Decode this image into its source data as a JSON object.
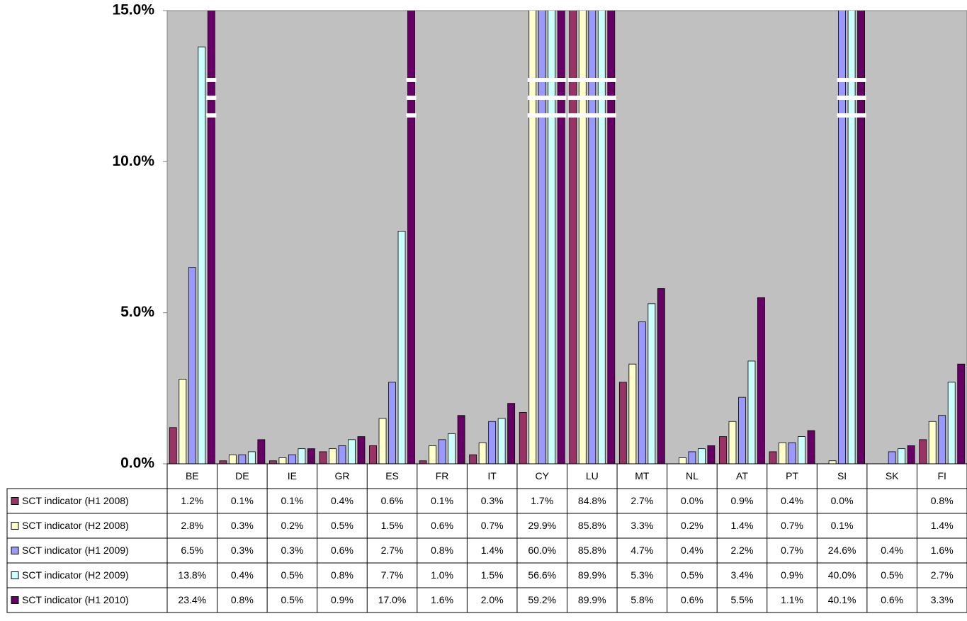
{
  "chart_data": {
    "type": "bar",
    "categories": [
      "BE",
      "DE",
      "IE",
      "GR",
      "ES",
      "FR",
      "IT",
      "CY",
      "LU",
      "MT",
      "NL",
      "AT",
      "PT",
      "SI",
      "SK",
      "FI"
    ],
    "ylim": [
      0,
      15
    ],
    "yticks": [
      {
        "value": 0,
        "label": "0.0%"
      },
      {
        "value": 5,
        "label": "5.0%"
      },
      {
        "value": 10,
        "label": "10.0%"
      },
      {
        "value": 15,
        "label": "15.0%"
      }
    ],
    "grid": false,
    "series": [
      {
        "name": "SCT indicator (H1 2008)",
        "color": "#993366",
        "values": [
          1.2,
          0.1,
          0.1,
          0.4,
          0.6,
          0.1,
          0.3,
          1.7,
          84.8,
          2.7,
          0.0,
          0.9,
          0.4,
          0.0,
          null,
          0.8
        ],
        "value_labels": [
          "1.2%",
          "0.1%",
          "0.1%",
          "0.4%",
          "0.6%",
          "0.1%",
          "0.3%",
          "1.7%",
          "84.8%",
          "2.7%",
          "0.0%",
          "0.9%",
          "0.4%",
          "0.0%",
          null,
          "0.8%"
        ]
      },
      {
        "name": "SCT indicator (H2 2008)",
        "color": "#ffffcc",
        "values": [
          2.8,
          0.3,
          0.2,
          0.5,
          1.5,
          0.6,
          0.7,
          29.9,
          85.8,
          3.3,
          0.2,
          1.4,
          0.7,
          0.1,
          null,
          1.4
        ],
        "value_labels": [
          "2.8%",
          "0.3%",
          "0.2%",
          "0.5%",
          "1.5%",
          "0.6%",
          "0.7%",
          "29.9%",
          "85.8%",
          "3.3%",
          "0.2%",
          "1.4%",
          "0.7%",
          "0.1%",
          null,
          "1.4%"
        ]
      },
      {
        "name": "SCT indicator (H1 2009)",
        "color": "#9999ff",
        "values": [
          6.5,
          0.3,
          0.3,
          0.6,
          2.7,
          0.8,
          1.4,
          60.0,
          85.8,
          4.7,
          0.4,
          2.2,
          0.7,
          24.6,
          0.4,
          1.6
        ],
        "value_labels": [
          "6.5%",
          "0.3%",
          "0.3%",
          "0.6%",
          "2.7%",
          "0.8%",
          "1.4%",
          "60.0%",
          "85.8%",
          "4.7%",
          "0.4%",
          "2.2%",
          "0.7%",
          "24.6%",
          "0.4%",
          "1.6%"
        ]
      },
      {
        "name": "SCT indicator (H2 2009)",
        "color": "#ccffff",
        "values": [
          13.8,
          0.4,
          0.5,
          0.8,
          7.7,
          1.0,
          1.5,
          56.6,
          89.9,
          5.3,
          0.5,
          3.4,
          0.9,
          40.0,
          0.5,
          2.7
        ],
        "value_labels": [
          "13.8%",
          "0.4%",
          "0.5%",
          "0.8%",
          "7.7%",
          "1.0%",
          "1.5%",
          "56.6%",
          "89.9%",
          "5.3%",
          "0.5%",
          "3.4%",
          "0.9%",
          "40.0%",
          "0.5%",
          "2.7%"
        ]
      },
      {
        "name": "SCT indicator (H1 2010)",
        "color": "#660066",
        "values": [
          23.4,
          0.8,
          0.5,
          0.9,
          17.0,
          1.6,
          2.0,
          59.2,
          89.9,
          5.8,
          0.6,
          5.5,
          1.1,
          40.1,
          0.6,
          3.3
        ],
        "value_labels": [
          "23.4%",
          "0.8%",
          "0.5%",
          "0.9%",
          "17.0%",
          "1.6%",
          "2.0%",
          "59.2%",
          "89.9%",
          "5.8%",
          "0.6%",
          "5.5%",
          "1.1%",
          "40.1%",
          "0.6%",
          "3.3%"
        ]
      }
    ]
  }
}
